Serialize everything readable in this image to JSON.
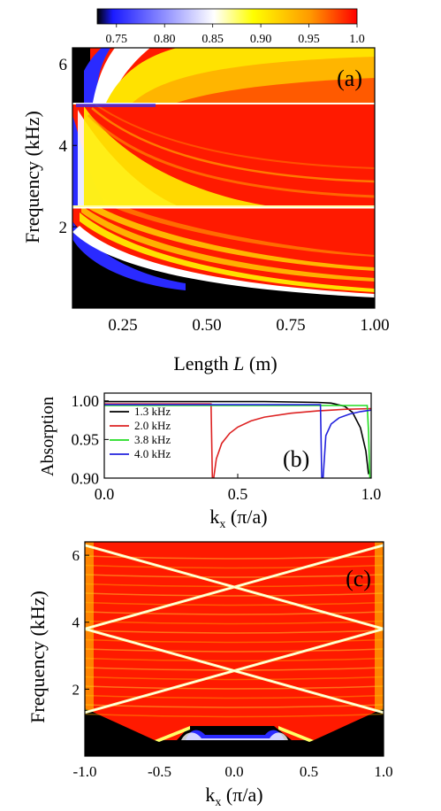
{
  "colorbar": {
    "ticks": [
      "0.75",
      "0.80",
      "0.85",
      "0.90",
      "0.95",
      "1.0"
    ],
    "range": [
      0.73,
      1.0
    ],
    "colors": [
      "#000000",
      "#1a1aff",
      "#ffffff",
      "#ffff00",
      "#ff9900",
      "#ff0000"
    ]
  },
  "chart_data": [
    {
      "type": "heatmap",
      "panel_label": "(a)",
      "xlabel": "Length",
      "xlabel_italic": "L",
      "xlabel_unit": "(m)",
      "ylabel": "Frequency (kHz)",
      "xlim": [
        0.1,
        1.0
      ],
      "ylim": [
        0,
        6.4
      ],
      "xticks": [
        0.25,
        0.5,
        0.75,
        1.0
      ],
      "xtick_labels": [
        "0.25",
        "0.50",
        "0.75",
        "1.00"
      ],
      "yticks": [
        2,
        4,
        6
      ],
      "ytick_labels": [
        "2",
        "4",
        "6"
      ],
      "horizontal_band_edges_khz": [
        2.5,
        5.0
      ],
      "colormap_value_range": [
        0.75,
        1.0
      ]
    },
    {
      "type": "line",
      "panel_label": "(b)",
      "xlabel": "k",
      "xlabel_sub": "x",
      "xlabel_unit": "(π/a)",
      "ylabel": "Absorption",
      "xlim": [
        0.0,
        1.0
      ],
      "ylim": [
        0.9,
        1.01
      ],
      "xticks": [
        0.0,
        0.5,
        1.0
      ],
      "xtick_labels": [
        "0.0",
        "0.5",
        "1.0"
      ],
      "yticks": [
        0.9,
        0.95,
        1.0
      ],
      "ytick_labels": [
        "0.90",
        "0.95",
        "1.00"
      ],
      "legend_position": "left",
      "series": [
        {
          "name": "1.3 kHz",
          "color": "#000000",
          "x": [
            0.0,
            0.2,
            0.4,
            0.6,
            0.8,
            0.85,
            0.9,
            0.93,
            0.96,
            0.98,
            0.99
          ],
          "y": [
            0.999,
            0.999,
            0.999,
            0.999,
            0.998,
            0.997,
            0.993,
            0.985,
            0.965,
            0.935,
            0.905
          ]
        },
        {
          "name": "2.0 kHz",
          "color": "#dd2222",
          "x": [
            0.0,
            0.4,
            0.405,
            0.41,
            0.42,
            0.44,
            0.47,
            0.5,
            0.55,
            0.6,
            0.7,
            0.8,
            0.9,
            1.0
          ],
          "y": [
            0.996,
            0.996,
            0.9,
            0.9,
            0.925,
            0.945,
            0.958,
            0.966,
            0.974,
            0.979,
            0.984,
            0.987,
            0.989,
            0.99
          ]
        },
        {
          "name": "3.8 kHz",
          "color": "#22dd22",
          "x": [
            0.0,
            0.2,
            0.4,
            0.6,
            0.8,
            0.95,
            0.985,
            0.99,
            0.995,
            1.0
          ],
          "y": [
            0.994,
            0.994,
            0.994,
            0.994,
            0.994,
            0.994,
            0.994,
            0.96,
            0.9,
            0.9
          ]
        },
        {
          "name": "4.0 kHz",
          "color": "#2222dd",
          "x": [
            0.0,
            0.4,
            0.6,
            0.81,
            0.815,
            0.82,
            0.83,
            0.85,
            0.88,
            0.92,
            0.96,
            1.0
          ],
          "y": [
            0.995,
            0.995,
            0.995,
            0.995,
            0.9,
            0.9,
            0.955,
            0.97,
            0.978,
            0.983,
            0.986,
            0.988
          ]
        }
      ]
    },
    {
      "type": "heatmap",
      "panel_label": "(c)",
      "xlabel": "k",
      "xlabel_sub": "x",
      "xlabel_unit": "(π/a)",
      "ylabel": "Frequency (kHz)",
      "xlim": [
        -1.0,
        1.0
      ],
      "ylim": [
        0,
        6.4
      ],
      "xticks": [
        -1.0,
        -0.5,
        0.0,
        0.5,
        1.0
      ],
      "xtick_labels": [
        "-1.0",
        "-0.5",
        "0.0",
        "0.5",
        "1.0"
      ],
      "yticks": [
        2,
        4,
        6
      ],
      "ytick_labels": [
        "2",
        "4",
        "6"
      ],
      "band_lines_khz": [
        [
          -1.0,
          1.3,
          1.0,
          3.8
        ],
        [
          1.0,
          1.3,
          -1.0,
          3.8
        ],
        [
          -1.0,
          3.8,
          1.0,
          6.3
        ],
        [
          1.0,
          3.8,
          -1.0,
          6.3
        ]
      ],
      "colormap_value_range": [
        0.75,
        1.0
      ]
    }
  ]
}
